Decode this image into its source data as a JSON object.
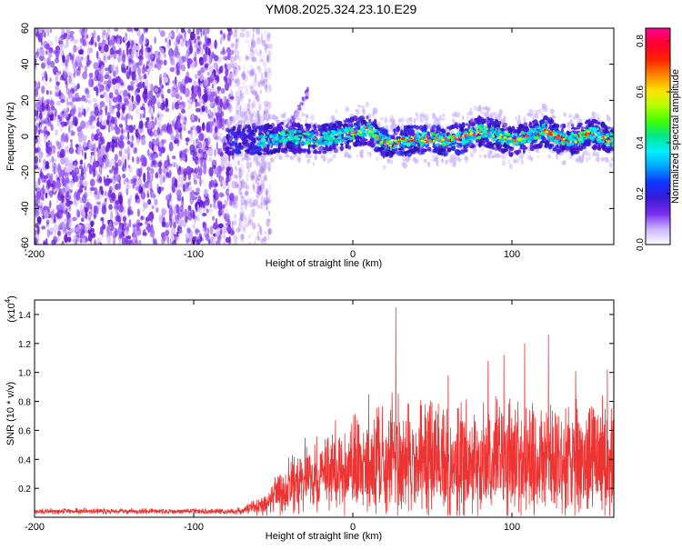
{
  "title": "YM08.2025.324.23.10.E29",
  "chart_data": [
    {
      "type": "heatmap",
      "name": "spectrogram",
      "xlabel": "Height of straight line (km)",
      "ylabel": "Frequency (Hz)",
      "xlim": [
        -200,
        164
      ],
      "ylim": [
        -60,
        60
      ],
      "xticks": [
        -200,
        -100,
        0,
        100
      ],
      "xtick_labels": [
        "-200",
        "-100",
        "0",
        "100"
      ],
      "yticks": [
        -60,
        -40,
        -20,
        0,
        20,
        40,
        60
      ],
      "ytick_labels": [
        "-60",
        "-40",
        "-20",
        "0",
        "20",
        "40",
        "60"
      ],
      "colorbar": {
        "label": "Normalized spectral amplitude",
        "range": [
          0,
          0.85
        ],
        "ticks": [
          0,
          0.2,
          0.4,
          0.6,
          0.8
        ],
        "tick_labels": [
          "0.0",
          "0.2",
          "0.4",
          "0.6",
          "0.8"
        ],
        "colors": [
          "#ffffff",
          "#c8b4ff",
          "#7b2cf0",
          "#3a1ad8",
          "#1033ff",
          "#00a0ff",
          "#00f0ff",
          "#00e890",
          "#40ff00",
          "#b8ff00",
          "#ffe000",
          "#ff8000",
          "#ff2000",
          "#ff0030",
          "#ff0090"
        ]
      },
      "noise_region_x": [
        -200,
        -60
      ],
      "signal_track": [
        {
          "x": -60,
          "y": -2
        },
        {
          "x": -40,
          "y": 0
        },
        {
          "x": -20,
          "y": -2
        },
        {
          "x": -10,
          "y": 0
        },
        {
          "x": 0,
          "y": 2
        },
        {
          "x": 10,
          "y": 4
        },
        {
          "x": 20,
          "y": -4
        },
        {
          "x": 30,
          "y": -3
        },
        {
          "x": 40,
          "y": -1
        },
        {
          "x": 50,
          "y": -2
        },
        {
          "x": 60,
          "y": -2
        },
        {
          "x": 70,
          "y": -1
        },
        {
          "x": 80,
          "y": 3
        },
        {
          "x": 90,
          "y": 1
        },
        {
          "x": 100,
          "y": -3
        },
        {
          "x": 110,
          "y": 0
        },
        {
          "x": 120,
          "y": 3
        },
        {
          "x": 130,
          "y": -1
        },
        {
          "x": 140,
          "y": -2
        },
        {
          "x": 150,
          "y": 2
        },
        {
          "x": 160,
          "y": -2
        }
      ],
      "spike": {
        "x": -28,
        "y": 25
      }
    },
    {
      "type": "line",
      "name": "snr",
      "xlabel": "Height of straight line (km)",
      "ylabel": "SNR (10 * v/v)",
      "scale_label": "(x10",
      "scale_exponent": "4",
      "xlim": [
        -200,
        164
      ],
      "ylim": [
        0,
        1.5
      ],
      "xticks": [
        -200,
        -100,
        0,
        100
      ],
      "xtick_labels": [
        "-200",
        "-100",
        "0",
        "100"
      ],
      "yticks": [
        0.2,
        0.4,
        0.6,
        0.8,
        1.0,
        1.2,
        1.4
      ],
      "ytick_labels": [
        "0.2",
        "0.4",
        "0.6",
        "0.8",
        "1.0",
        "1.2",
        "1.4"
      ],
      "color": "#ee3333",
      "envelope": [
        {
          "x": -200,
          "mean": 0.04,
          "spread": 0.02
        },
        {
          "x": -70,
          "mean": 0.04,
          "spread": 0.02
        },
        {
          "x": -55,
          "mean": 0.08,
          "spread": 0.08
        },
        {
          "x": -40,
          "mean": 0.2,
          "spread": 0.18
        },
        {
          "x": -20,
          "mean": 0.28,
          "spread": 0.25
        },
        {
          "x": 0,
          "mean": 0.32,
          "spread": 0.35
        },
        {
          "x": 20,
          "mean": 0.35,
          "spread": 0.4
        },
        {
          "x": 164,
          "mean": 0.35,
          "spread": 0.4
        }
      ],
      "peaks": [
        {
          "x": 27,
          "y": 1.45
        },
        {
          "x": 95,
          "y": 1.12
        },
        {
          "x": 123,
          "y": 1.26
        },
        {
          "x": 160,
          "y": 1.02
        },
        {
          "x": 108,
          "y": 1.2
        },
        {
          "x": 10,
          "y": 0.85
        },
        {
          "x": 60,
          "y": 0.98
        },
        {
          "x": 85,
          "y": 1.08
        },
        {
          "x": 140,
          "y": 1.01
        },
        {
          "x": -30,
          "y": 0.55
        },
        {
          "x": -38,
          "y": 0.43
        }
      ]
    }
  ]
}
